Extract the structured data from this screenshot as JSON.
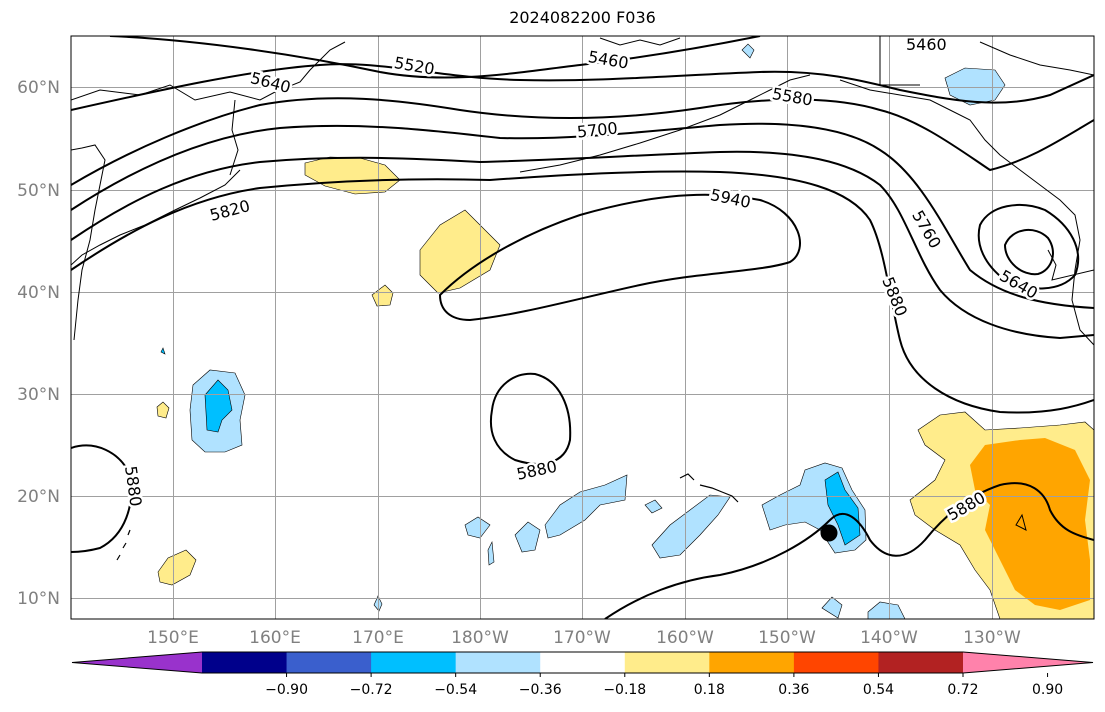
{
  "title": "2024082200 F036",
  "lat_labels": [
    "10°N",
    "20°N",
    "30°N",
    "40°N",
    "50°N",
    "60°N"
  ],
  "lon_labels": [
    "150°E",
    "160°E",
    "170°E",
    "180°W",
    "170°W",
    "160°W",
    "150°W",
    "140°W",
    "130°W"
  ],
  "colorbar": {
    "ticks": [
      "−0.90",
      "−0.72",
      "−0.54",
      "−0.36",
      "−0.18",
      "0.18",
      "0.36",
      "0.54",
      "0.72",
      "0.90"
    ],
    "colors": [
      "#9932cc",
      "#00008b",
      "#3a5fcd",
      "#00bfff",
      "#b0e2ff",
      "#ffffff",
      "#ffec8b",
      "#ffa500",
      "#ff4500",
      "#b22222",
      "#ff82ab"
    ]
  },
  "contour_labels": {
    "l5460_a": "5460",
    "l5460_b": "5460",
    "l5520": "5520",
    "l5580": "5580",
    "l5640_a": "5640",
    "l5640_b": "5640",
    "l5700": "5700",
    "l5760": "5760",
    "l5820": "5820",
    "l5880_a": "5880",
    "l5880_b": "5880",
    "l5880_c": "5880",
    "l5880_d": "5880",
    "l5940": "5940"
  },
  "marker": "storm-position-dot"
}
